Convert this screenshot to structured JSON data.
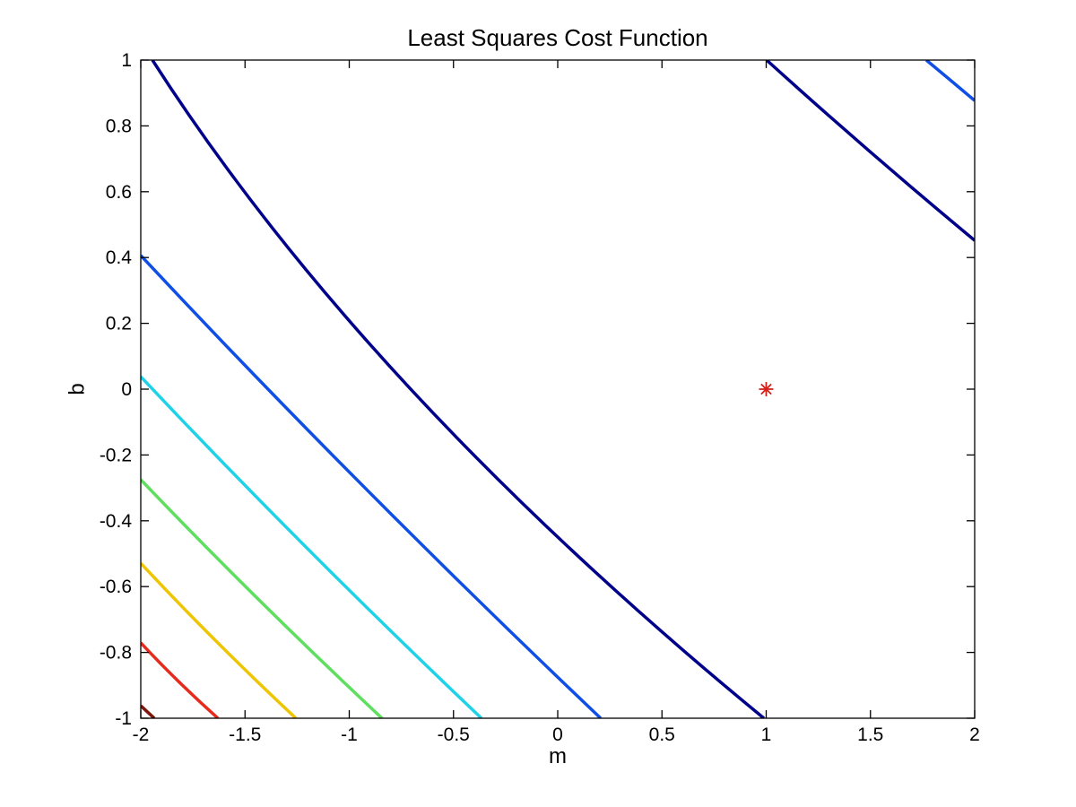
{
  "figure": {
    "background": "#ffffff",
    "axis_color": "#000000"
  },
  "chart_data": {
    "type": "contour",
    "title": "Least Squares Cost Function",
    "xlabel": "m",
    "ylabel": "b",
    "xlim": [
      -2,
      2
    ],
    "ylim": [
      -1,
      1
    ],
    "grid": false,
    "legend": null,
    "colormap": "jet",
    "xticks": [
      -2,
      -1.5,
      -1,
      -0.5,
      0,
      0.5,
      1,
      1.5,
      2
    ],
    "xtick_labels": [
      "-2",
      "-1.5",
      "-1",
      "-0.5",
      "0",
      "0.5",
      "1",
      "1.5",
      "2"
    ],
    "yticks": [
      -1,
      -0.8,
      -0.6,
      -0.4,
      -0.2,
      0,
      0.2,
      0.4,
      0.6,
      0.8,
      1
    ],
    "ytick_labels": [
      "-1",
      "-0.8",
      "-0.6",
      "-0.4",
      "-0.2",
      "0",
      "0.2",
      "0.4",
      "0.6",
      "0.8",
      "1"
    ],
    "minimum_marker": {
      "m": 1.0,
      "b": 0.0,
      "style": "asterisk",
      "color": "#d42018"
    },
    "line_width": 3.5,
    "contour_levels": [
      {
        "name": "level-1-navy",
        "color": "#00008a",
        "branches": [
          {
            "p0": [
              -1.944,
              1.0
            ],
            "c": [
              -0.933,
              0.0
            ],
            "p1": [
              0.989,
              -1.0
            ]
          },
          {
            "p0": [
              1.002,
              1.0
            ],
            "c": [
              1.501,
              0.714
            ],
            "p1": [
              2.0,
              0.452
            ]
          }
        ]
      },
      {
        "name": "level-2-blue",
        "color": "#0f4fe6",
        "branches": [
          {
            "p0": [
              -2.0,
              0.406
            ],
            "c": [
              -0.97,
              -0.292
            ],
            "p1": [
              0.206,
              -1.0
            ]
          },
          {
            "p0": [
              1.768,
              1.0
            ],
            "c": [
              1.884,
              0.939
            ],
            "p1": [
              2.0,
              0.877
            ]
          }
        ]
      },
      {
        "name": "level-3-cyan",
        "color": "#1fd2e8",
        "branches": [
          {
            "p0": [
              -2.0,
              0.038
            ],
            "c": [
              -1.234,
              -0.478
            ],
            "p1": [
              -0.366,
              -1.0
            ]
          }
        ]
      },
      {
        "name": "level-4-green",
        "color": "#5fdf5f",
        "branches": [
          {
            "p0": [
              -2.0,
              -0.275
            ],
            "c": [
              -1.458,
              -0.635
            ],
            "p1": [
              -0.843,
              -1.0
            ]
          }
        ]
      },
      {
        "name": "level-5-yellow",
        "color": "#efc400",
        "branches": [
          {
            "p0": [
              -2.0,
              -0.529
            ],
            "c": [
              -1.656,
              -0.763
            ],
            "p1": [
              -1.256,
              -1.0
            ]
          }
        ]
      },
      {
        "name": "level-6-red",
        "color": "#e62a1c",
        "branches": [
          {
            "p0": [
              -2.0,
              -0.771
            ],
            "c": [
              -1.828,
              -0.888
            ],
            "p1": [
              -1.63,
              -1.0
            ]
          }
        ]
      },
      {
        "name": "level-7-darkred",
        "color": "#7d170d",
        "branches": [
          {
            "p0": [
              -2.0,
              -0.962
            ],
            "c": [
              -1.968,
              -0.981
            ],
            "p1": [
              -1.935,
              -1.0
            ]
          }
        ]
      }
    ]
  }
}
